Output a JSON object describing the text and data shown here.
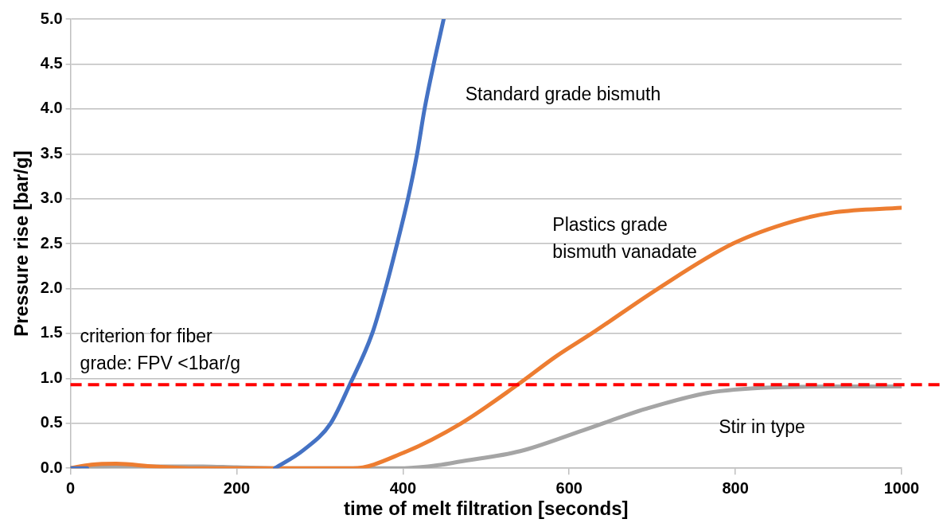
{
  "chart_data": {
    "type": "line",
    "xlabel": "time of melt filtration [seconds]",
    "ylabel": "Pressure rise [bar/g]",
    "xlim": [
      0,
      1000
    ],
    "xticks": [
      0,
      200,
      400,
      600,
      800,
      1000
    ],
    "ylim": [
      0,
      5
    ],
    "yticks": [
      {
        "value": 0,
        "label": "0.0"
      },
      0.5,
      {
        "value": 1,
        "label": "1.0"
      },
      1.5,
      {
        "value": 2,
        "label": "2.0"
      },
      2.5,
      {
        "value": 3,
        "label": "3.0"
      },
      3.5,
      {
        "value": 4,
        "label": "4.0"
      },
      4.5,
      {
        "value": 5,
        "label": "5.0"
      }
    ],
    "grid": "y",
    "marker": "none",
    "line_style": "solid",
    "series": [
      {
        "name": "Stir in type",
        "color": "#a5a5a5",
        "x": [
          0,
          50,
          100,
          150,
          200,
          250,
          300,
          350,
          400,
          447,
          466,
          541,
          616,
          692,
          767,
          842,
          920,
          1000
        ],
        "values": [
          0,
          0.02,
          0.02,
          0.02,
          0.01,
          0,
          0,
          0,
          0,
          0.04,
          0.07,
          0.19,
          0.42,
          0.66,
          0.84,
          0.9,
          0.91,
          0.91
        ]
      },
      {
        "name": "Plastics grade\nbismuth vanadate",
        "color": "#ed7d31",
        "x": [
          0,
          25,
          55,
          100,
          150,
          200,
          250,
          300,
          340,
          400,
          470,
          538,
          585,
          627,
          707,
          797,
          870,
          920,
          1000
        ],
        "values": [
          0,
          0.04,
          0.05,
          0.02,
          0,
          0,
          0,
          0,
          0,
          0.17,
          0.5,
          0.93,
          1.25,
          1.5,
          2,
          2.5,
          2.75,
          2.85,
          2.9
        ]
      },
      {
        "name": "Standard grade bismuth",
        "color": "#4472c4",
        "x": [
          0,
          20,
          100,
          246,
          280,
          313,
          336,
          363,
          379,
          393,
          406,
          417,
          426,
          437,
          449
        ],
        "values": [
          0,
          0,
          null,
          0,
          0.2,
          0.5,
          0.93,
          1.5,
          2,
          2.5,
          3,
          3.5,
          4,
          4.5,
          5
        ]
      }
    ],
    "ref_lines": [
      {
        "axis": "y",
        "value": 0.93,
        "label": "criterion for fiber\ngrade: FPV <1bar/g",
        "color": "#ff0000",
        "line_style": "dashed"
      }
    ]
  }
}
